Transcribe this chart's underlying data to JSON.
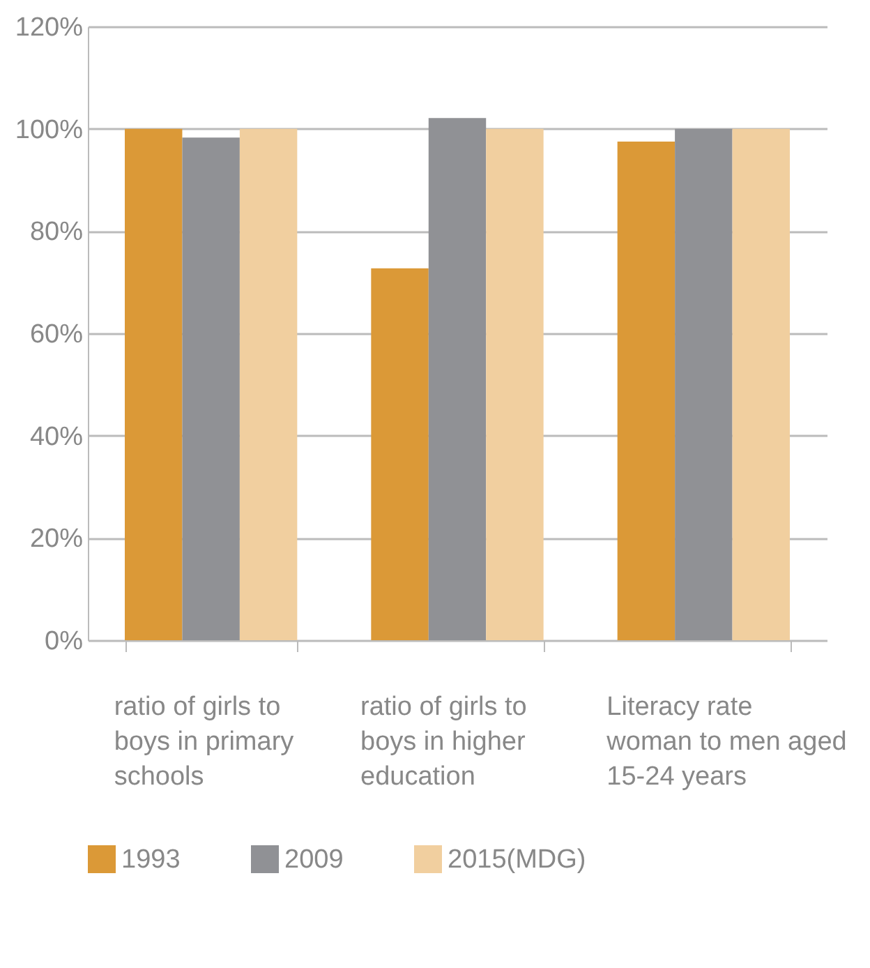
{
  "chart_data": {
    "type": "bar",
    "categories": [
      "ratio of girls to boys in primary schools",
      "ratio of girls to boys in higher education",
      "Literacy rate woman to men aged 15-24 years"
    ],
    "series": [
      {
        "name": "1993",
        "color": "#db9937",
        "values": [
          100,
          72.7,
          97.5
        ]
      },
      {
        "name": "2009",
        "color": "#909195",
        "values": [
          98.3,
          102.1,
          100
        ]
      },
      {
        "name": "2015(MDG)",
        "color": "#f1cf9f",
        "values": [
          100,
          100,
          100
        ]
      }
    ],
    "ylim": [
      0,
      120
    ],
    "yticks": [
      {
        "value": 0,
        "label": "0%"
      },
      {
        "value": 20,
        "label": "20%"
      },
      {
        "value": 40,
        "label": "40%"
      },
      {
        "value": 60,
        "label": "60%"
      },
      {
        "value": 80,
        "label": "80%"
      },
      {
        "value": 100,
        "label": "100%"
      },
      {
        "value": 120,
        "label": "120%"
      }
    ],
    "grid": "y",
    "legend": "bottom"
  }
}
